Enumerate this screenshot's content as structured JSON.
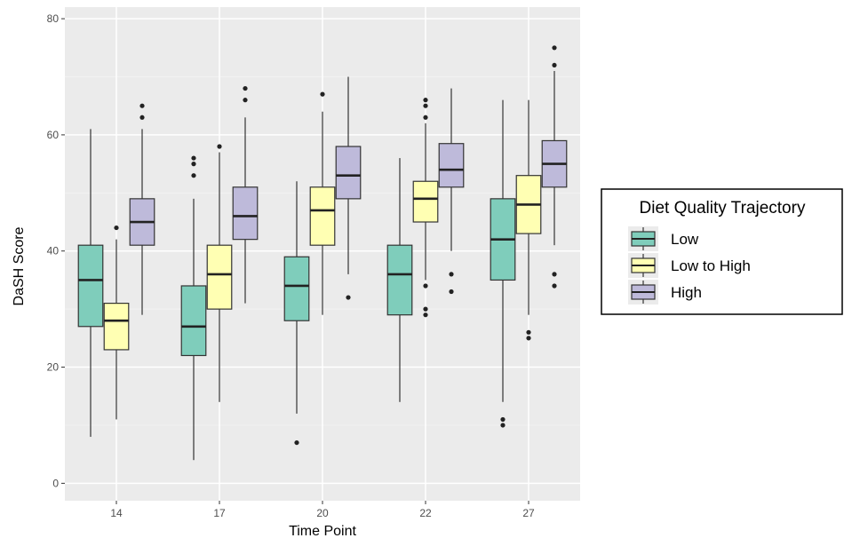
{
  "chart_data": {
    "type": "boxplot",
    "title": "",
    "xlabel": "Time Point",
    "ylabel": "DaSH Score",
    "ylim": [
      -3,
      82
    ],
    "yticks": [
      0,
      20,
      40,
      60,
      80
    ],
    "categories": [
      "14",
      "17",
      "20",
      "22",
      "27"
    ],
    "grid": true,
    "legend": {
      "title": "Diet Quality Trajectory",
      "position": "right"
    },
    "series": [
      {
        "name": "Low",
        "color": "#7fcdbb",
        "boxes": [
          {
            "whisker_low": 8,
            "q1": 27,
            "median": 35,
            "q3": 41,
            "whisker_high": 61,
            "outliers": []
          },
          {
            "whisker_low": 4,
            "q1": 22,
            "median": 27,
            "q3": 34,
            "whisker_high": 49,
            "outliers": [
              53,
              55,
              56
            ]
          },
          {
            "whisker_low": 12,
            "q1": 28,
            "median": 34,
            "q3": 39,
            "whisker_high": 52,
            "outliers": [
              7
            ]
          },
          {
            "whisker_low": 14,
            "q1": 29,
            "median": 36,
            "q3": 41,
            "whisker_high": 56,
            "outliers": []
          },
          {
            "whisker_low": 14,
            "q1": 35,
            "median": 42,
            "q3": 49,
            "whisker_high": 66,
            "outliers": [
              10,
              11
            ]
          }
        ]
      },
      {
        "name": "Low to High",
        "color": "#ffffb3",
        "boxes": [
          {
            "whisker_low": 11,
            "q1": 23,
            "median": 28,
            "q3": 31,
            "whisker_high": 42,
            "outliers": [
              44
            ]
          },
          {
            "whisker_low": 14,
            "q1": 30,
            "median": 36,
            "q3": 41,
            "whisker_high": 57,
            "outliers": [
              58
            ]
          },
          {
            "whisker_low": 29,
            "q1": 41,
            "median": 47,
            "q3": 51,
            "whisker_high": 64,
            "outliers": [
              67
            ]
          },
          {
            "whisker_low": 35,
            "q1": 45,
            "median": 49,
            "q3": 52,
            "whisker_high": 62,
            "outliers": [
              29,
              30,
              34,
              63,
              65,
              66
            ]
          },
          {
            "whisker_low": 29,
            "q1": 43,
            "median": 48,
            "q3": 53,
            "whisker_high": 66,
            "outliers": [
              25,
              26
            ]
          }
        ]
      },
      {
        "name": "High",
        "color": "#bebada",
        "boxes": [
          {
            "whisker_low": 29,
            "q1": 41,
            "median": 45,
            "q3": 49,
            "whisker_high": 61,
            "outliers": [
              63,
              65
            ]
          },
          {
            "whisker_low": 31,
            "q1": 42,
            "median": 46,
            "q3": 51,
            "whisker_high": 63,
            "outliers": [
              66,
              68
            ]
          },
          {
            "whisker_low": 36,
            "q1": 49,
            "median": 53,
            "q3": 58,
            "whisker_high": 70,
            "outliers": [
              32
            ]
          },
          {
            "whisker_low": 40,
            "q1": 51,
            "median": 54,
            "q3": 58.5,
            "whisker_high": 68,
            "outliers": [
              33,
              36
            ]
          },
          {
            "whisker_low": 41,
            "q1": 51,
            "median": 55,
            "q3": 59,
            "whisker_high": 71,
            "outliers": [
              34,
              36,
              72,
              75
            ]
          }
        ]
      }
    ]
  }
}
